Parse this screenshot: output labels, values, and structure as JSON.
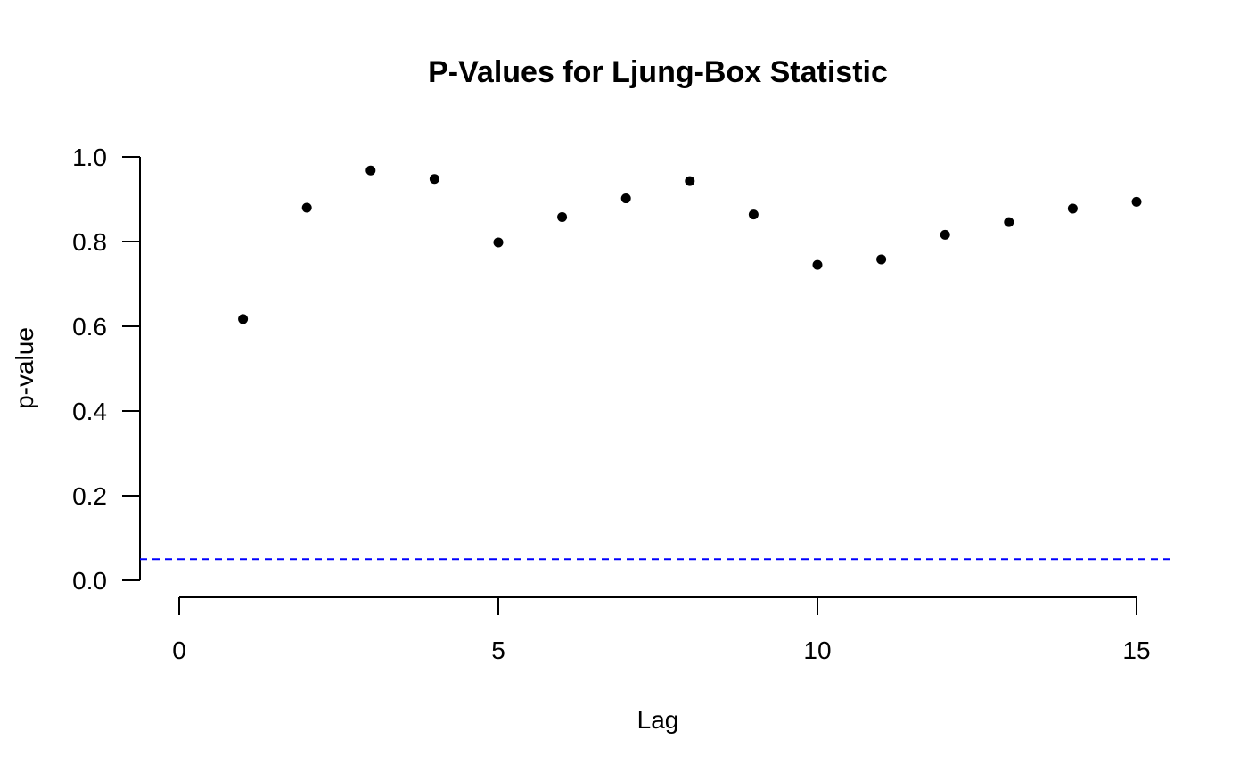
{
  "chart_data": {
    "type": "scatter",
    "title": "P-Values for Ljung-Box Statistic",
    "xlabel": "Lag",
    "ylabel": "p-value",
    "xlim": [
      0,
      15
    ],
    "ylim": [
      0,
      1
    ],
    "x_ticks": [
      0,
      5,
      10,
      15
    ],
    "x_tick_labels": [
      "0",
      "5",
      "10",
      "15"
    ],
    "y_ticks": [
      0,
      0.2,
      0.4,
      0.6,
      0.8,
      1.0
    ],
    "y_tick_labels": [
      "0.0",
      "0.2",
      "0.4",
      "0.6",
      "0.8",
      "1.0"
    ],
    "grid": false,
    "legend": "none",
    "series": [
      {
        "x": [
          1,
          2,
          3,
          4,
          5,
          6,
          7,
          8,
          9,
          10,
          11,
          12,
          13,
          14,
          15
        ],
        "values": [
          0.617,
          0.88,
          0.968,
          0.948,
          0.798,
          0.858,
          0.902,
          0.943,
          0.864,
          0.745,
          0.758,
          0.816,
          0.846,
          0.878,
          0.894
        ],
        "color": "#000000"
      }
    ],
    "reference_line": {
      "y": 0.05,
      "color": "#0000ff",
      "style": "dashed"
    }
  }
}
